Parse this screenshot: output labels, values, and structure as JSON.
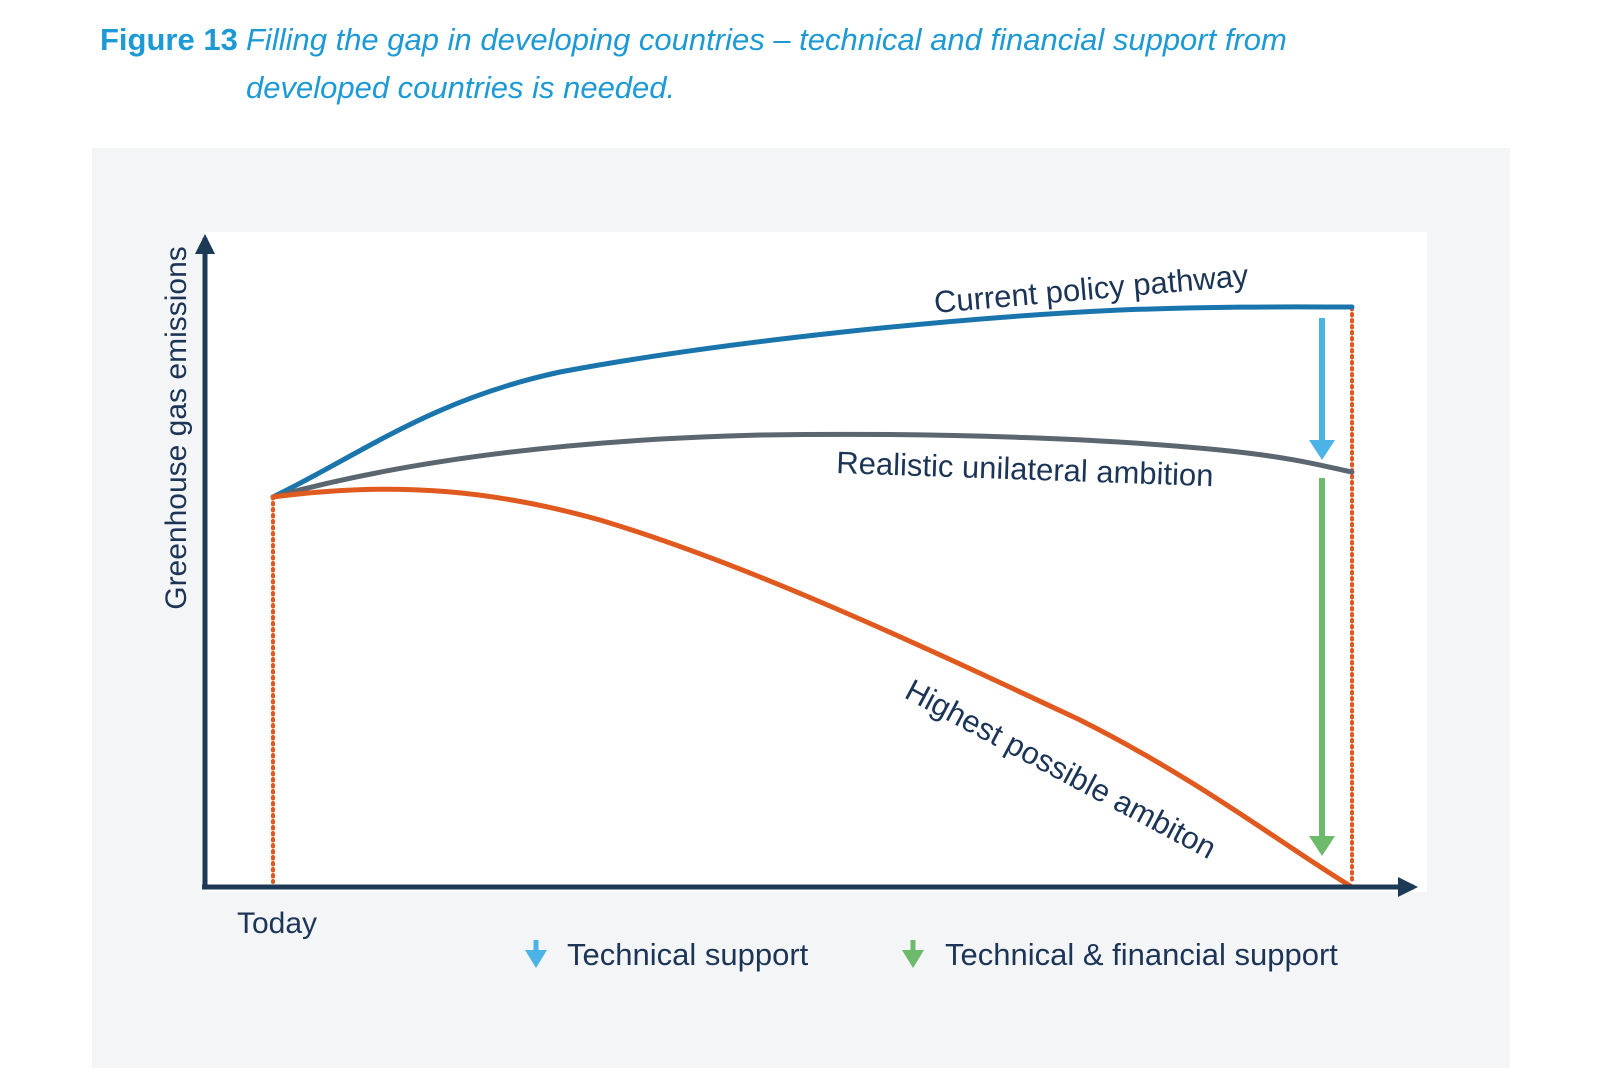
{
  "figure": {
    "number": "Figure 13",
    "title": "Filling the gap in developing countries – technical and financial support from developed countries is needed."
  },
  "axes": {
    "y_label": "Greenhouse gas emissions",
    "x_label": "Today"
  },
  "curves": {
    "current": {
      "label": "Current policy pathway",
      "color": "#1b75ad"
    },
    "realistic": {
      "label": "Realistic unilateral ambition",
      "color": "#5b6670"
    },
    "highest": {
      "label": "Highest possible ambiton",
      "color": "#e05a20"
    }
  },
  "legend": {
    "technical": {
      "label": "Technical support",
      "color": "#4cb3e6",
      "icon": "arrow-down-icon"
    },
    "financial": {
      "label": "Technical & financial support",
      "color": "#6dba6b",
      "icon": "arrow-down-icon"
    }
  },
  "colors": {
    "title": "#1d9ad6",
    "axis": "#1c3a55",
    "dotted_guides": "#e05a20",
    "panel_background": "#f3f5f7",
    "plot_background": "#ffffff"
  }
}
